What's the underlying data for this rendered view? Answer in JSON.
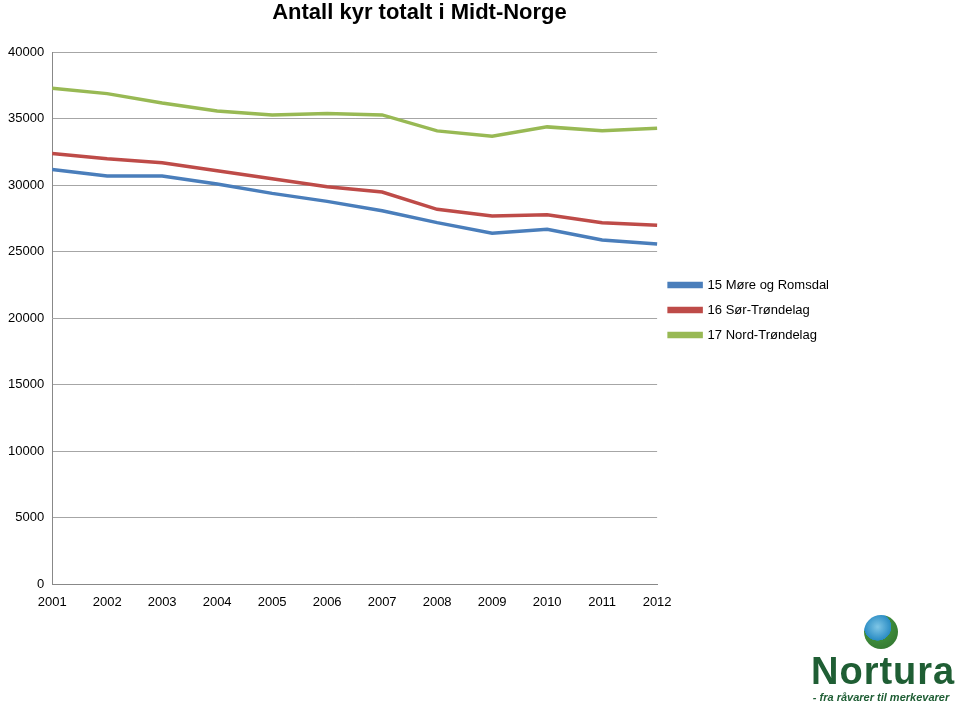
{
  "chart_data": {
    "type": "line",
    "title": "Antall kyr totalt i Midt-Norge",
    "categories": [
      "2001",
      "2002",
      "2003",
      "2004",
      "2005",
      "2006",
      "2007",
      "2008",
      "2009",
      "2010",
      "2011",
      "2012"
    ],
    "series": [
      {
        "name": "15 Møre og Romsdal",
        "color": "#4a7ebb",
        "values": [
          31200,
          30700,
          30700,
          30100,
          29400,
          28800,
          28100,
          27200,
          26400,
          26700,
          25900,
          25600
        ]
      },
      {
        "name": "16 Sør-Trøndelag",
        "color": "#be4b48",
        "values": [
          32400,
          32000,
          31700,
          31100,
          30500,
          29900,
          29500,
          28200,
          27700,
          27800,
          27200,
          27000
        ]
      },
      {
        "name": "17 Nord-Trøndelag",
        "color": "#98b954",
        "values": [
          37300,
          36900,
          36200,
          35600,
          35300,
          35400,
          35300,
          34100,
          33700,
          34400,
          34100,
          34300
        ]
      }
    ],
    "ylim": [
      0,
      40000
    ],
    "yticks": [
      0,
      5000,
      10000,
      15000,
      20000,
      25000,
      30000,
      35000,
      40000
    ],
    "grid": true,
    "legend": "right"
  },
  "logo": {
    "name": "Nortura",
    "tagline": "- fra råvarer til merkevarer"
  }
}
